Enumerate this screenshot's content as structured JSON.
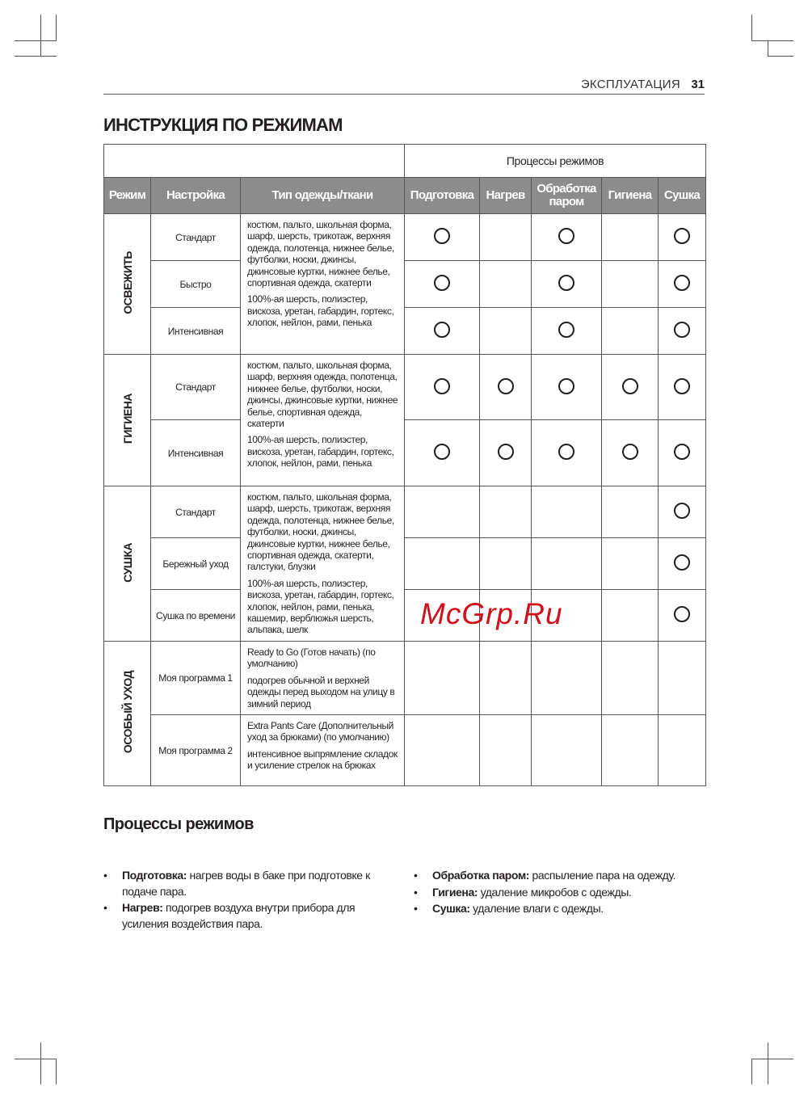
{
  "header": {
    "section": "ЭКСПЛУАТАЦИЯ",
    "page": "31"
  },
  "title": "ИНСТРУКЦИЯ ПО РЕЖИМАМ",
  "table": {
    "group_header": "Процессы режимов",
    "columns": [
      "Режим",
      "Настройка",
      "Тип одежды/ткани",
      "Подготовка",
      "Нагрев",
      "Обработка паром",
      "Гигиена",
      "Сушка"
    ],
    "groups": [
      {
        "mode": "ОСВЕЖИТЬ",
        "merged_types": true,
        "types": [
          "костюм, пальто, школьная форма, шарф, шерсть, трикотаж, верхняя одежда, полотенца, нижнее белье, футболки, носки, джинсы, джинсовые куртки, нижнее белье, спортивная одежда, скатерти",
          "100%-ая шерсть, полиэстер, вискоза, уретан, габардин, гортекс, хлопок, нейлон, рами, пенька"
        ],
        "rows": [
          {
            "setting": "Стандарт",
            "processes": [
              true,
              false,
              true,
              false,
              true
            ]
          },
          {
            "setting": "Быстро",
            "processes": [
              true,
              false,
              true,
              false,
              true
            ]
          },
          {
            "setting": "Интенсивная",
            "processes": [
              true,
              false,
              true,
              false,
              true
            ]
          }
        ]
      },
      {
        "mode": "ГИГИЕНА",
        "merged_types": true,
        "types": [
          "костюм, пальто, школьная форма, шарф, верхняя одежда, полотенца, нижнее белье, футболки, носки, джинсы, джинсовые куртки, нижнее белье, спортивная одежда, скатерти",
          "100%-ая шерсть, полиэстер, вискоза, уретан, габардин, гортекс, хлопок, нейлон, рами, пенька"
        ],
        "rows": [
          {
            "setting": "Стандарт",
            "processes": [
              true,
              true,
              true,
              true,
              true
            ]
          },
          {
            "setting": "Интенсивная",
            "processes": [
              true,
              true,
              true,
              true,
              true
            ]
          }
        ]
      },
      {
        "mode": "СУШКА",
        "merged_types": true,
        "types": [
          "костюм, пальто, школьная форма, шарф, шерсть, трикотаж, верхняя одежда, полотенца, нижнее белье, футболки, носки, джинсы, джинсовые куртки, нижнее белье, спортивная одежда, скатерти, галстуки, блузки",
          "100%-ая шерсть, полиэстер, вискоза, уретан, габардин, гортекс, хлопок, нейлон, рами, пенька, кашемир, верблюжья шерсть, альпака, шелк"
        ],
        "rows": [
          {
            "setting": "Стандарт",
            "processes": [
              false,
              false,
              false,
              false,
              true
            ]
          },
          {
            "setting": "Бережный уход",
            "processes": [
              false,
              false,
              false,
              false,
              true
            ]
          },
          {
            "setting": "Сушка по времени",
            "processes": [
              false,
              false,
              false,
              false,
              true
            ]
          }
        ]
      },
      {
        "mode": "ОСОБЫЙ УХОД",
        "merged_types": false,
        "rows": [
          {
            "setting": "Моя программа 1",
            "types": [
              "Ready to Go (Готов начать) (по умолчанию)",
              "подогрев обычной и верхней одежды перед выходом на улицу в зимний период"
            ],
            "processes": [
              false,
              false,
              false,
              false,
              false
            ]
          },
          {
            "setting": "Моя программа 2",
            "types": [
              "Extra Pants Care (Дополнительный уход за брюками) (по умолчанию)",
              "интенсивное выпрямление складок и усиление стрелок на брюках"
            ],
            "processes": [
              false,
              false,
              false,
              false,
              false
            ]
          }
        ]
      }
    ]
  },
  "subtitle": "Процессы режимов",
  "bullets_left": [
    {
      "term": "Подготовка:",
      "text": " нагрев воды в баке при подготовке к подаче пара."
    },
    {
      "term": "Нагрев:",
      "text": " подогрев воздуха внутри прибора для усиления воздействия пара."
    }
  ],
  "bullets_right": [
    {
      "term": "Обработка паром:",
      "text": " распыление пара на одежду."
    },
    {
      "term": "Гигиена:",
      "text": " удаление микробов с одежды."
    },
    {
      "term": "Сушка:",
      "text": " удаление влаги с одежды."
    }
  ],
  "watermark": "McGrp.Ru"
}
